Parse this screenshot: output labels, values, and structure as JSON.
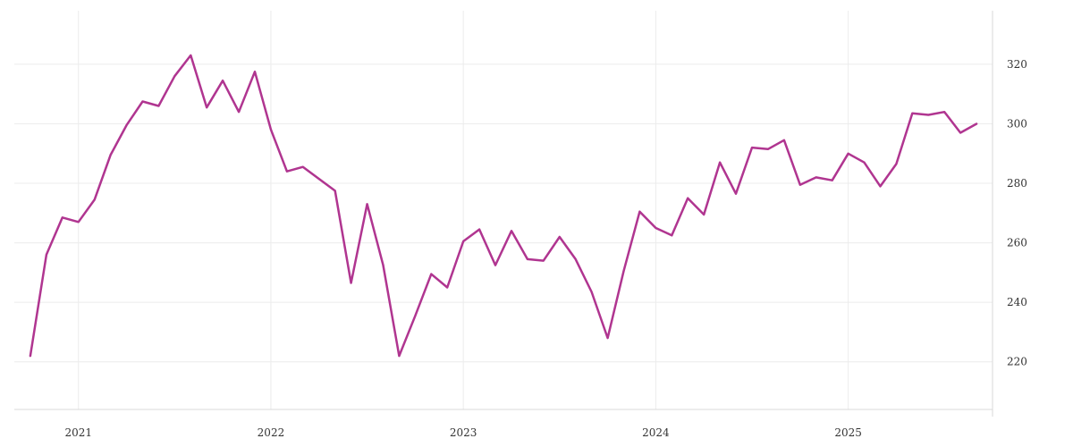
{
  "chart_data": {
    "type": "line",
    "title": "",
    "xlabel": "",
    "ylabel": "",
    "x_tick_labels": [
      "2021",
      "2022",
      "2023",
      "2024",
      "2025"
    ],
    "y_tick_labels": [
      "220",
      "240",
      "260",
      "280",
      "300",
      "320"
    ],
    "y_ticks": [
      220,
      240,
      260,
      280,
      300,
      320
    ],
    "ylim": [
      204,
      338
    ],
    "xlim": [
      "2020-09",
      "2025-10"
    ],
    "grid": true,
    "y_axis_position": "right",
    "series": [
      {
        "color": "#b03590",
        "x": [
          "2020-10",
          "2020-11",
          "2020-12",
          "2021-01",
          "2021-02",
          "2021-03",
          "2021-04",
          "2021-05",
          "2021-06",
          "2021-07",
          "2021-08",
          "2021-09",
          "2021-10",
          "2021-11",
          "2021-12",
          "2022-01",
          "2022-02",
          "2022-03",
          "2022-04",
          "2022-05",
          "2022-06",
          "2022-07",
          "2022-08",
          "2022-09",
          "2022-10",
          "2022-11",
          "2022-12",
          "2023-01",
          "2023-02",
          "2023-03",
          "2023-04",
          "2023-05",
          "2023-06",
          "2023-07",
          "2023-08",
          "2023-09",
          "2023-10",
          "2023-11",
          "2023-12",
          "2024-01",
          "2024-02",
          "2024-03",
          "2024-04",
          "2024-05",
          "2024-06",
          "2024-07",
          "2024-08",
          "2024-09",
          "2024-10",
          "2024-11",
          "2024-12",
          "2025-01",
          "2025-02",
          "2025-03",
          "2025-04",
          "2025-05",
          "2025-06",
          "2025-07",
          "2025-08",
          "2025-09"
        ],
        "values": [
          222,
          256,
          268.5,
          267,
          274.5,
          289.5,
          299.5,
          307.5,
          306,
          316,
          323,
          305.5,
          314.5,
          304,
          317.5,
          298,
          284,
          285.5,
          281.5,
          277.5,
          246.5,
          273,
          252.5,
          222,
          235.5,
          249.5,
          245,
          260.5,
          264.5,
          252.5,
          264,
          254.5,
          254,
          262,
          254.5,
          243.5,
          228,
          250.5,
          270.5,
          265,
          262.5,
          275,
          269.5,
          287,
          276.5,
          292,
          291.5,
          294.5,
          279.5,
          282,
          281,
          290,
          287,
          279,
          286.5,
          303.5,
          303,
          304,
          297,
          300
        ]
      }
    ]
  }
}
